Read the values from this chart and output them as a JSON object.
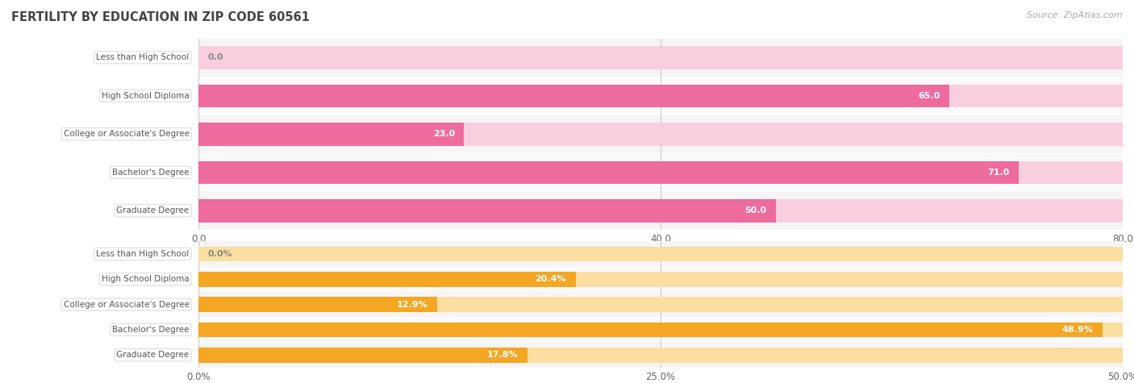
{
  "title": "FERTILITY BY EDUCATION IN ZIP CODE 60561",
  "source": "Source: ZipAtlas.com",
  "top_chart": {
    "categories": [
      "Less than High School",
      "High School Diploma",
      "College or Associate's Degree",
      "Bachelor's Degree",
      "Graduate Degree"
    ],
    "values": [
      0.0,
      65.0,
      23.0,
      71.0,
      50.0
    ],
    "value_labels": [
      "0.0",
      "65.0",
      "23.0",
      "71.0",
      "50.0"
    ],
    "xlim": [
      0,
      80
    ],
    "xticks": [
      0.0,
      40.0,
      80.0
    ],
    "xtick_labels": [
      "0.0",
      "40.0",
      "80.0"
    ],
    "bar_color": "#EE6B9E",
    "bar_color_light": "#F9CFE0",
    "row_bg_colors": [
      "#F5F5F5",
      "#FAFAFA",
      "#F5F5F5",
      "#FAFAFA",
      "#F5F5F5"
    ]
  },
  "bottom_chart": {
    "categories": [
      "Less than High School",
      "High School Diploma",
      "College or Associate's Degree",
      "Bachelor's Degree",
      "Graduate Degree"
    ],
    "values": [
      0.0,
      20.4,
      12.9,
      48.9,
      17.8
    ],
    "value_labels": [
      "0.0%",
      "20.4%",
      "12.9%",
      "48.9%",
      "17.8%"
    ],
    "xlim": [
      0,
      50
    ],
    "xticks": [
      0.0,
      25.0,
      50.0
    ],
    "xtick_labels": [
      "0.0%",
      "25.0%",
      "50.0%"
    ],
    "bar_color": "#F5A623",
    "bar_color_light": "#FCDFA0",
    "row_bg_colors": [
      "#F5F5F5",
      "#FAFAFA",
      "#F5F5F5",
      "#FAFAFA",
      "#F5F5F5"
    ]
  },
  "label_text_color": "#555555",
  "title_color": "#444444",
  "source_color": "#aaaaaa",
  "label_box_facecolor": "#ffffff",
  "label_box_edgecolor": "#dddddd"
}
